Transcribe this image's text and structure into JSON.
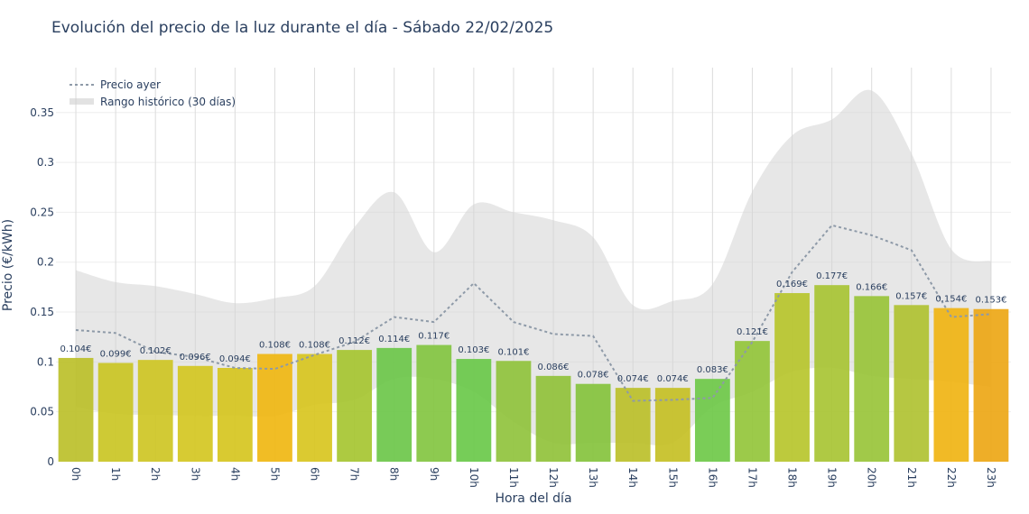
{
  "chart_data": {
    "type": "bar",
    "title": "Evolución del precio de la luz durante el día - Sábado 22/02/2025",
    "xlabel": "Hora del día",
    "ylabel": "Precio (€/kWh)",
    "ylim": [
      0,
      0.395
    ],
    "yticks": [
      "0",
      "0.05",
      "0.1",
      "0.15",
      "0.2",
      "0.25",
      "0.3",
      "0.35"
    ],
    "categories": [
      "0h",
      "1h",
      "2h",
      "3h",
      "4h",
      "5h",
      "6h",
      "7h",
      "8h",
      "9h",
      "10h",
      "11h",
      "12h",
      "13h",
      "14h",
      "15h",
      "16h",
      "17h",
      "18h",
      "19h",
      "20h",
      "21h",
      "22h",
      "23h"
    ],
    "values": [
      0.104,
      0.099,
      0.102,
      0.096,
      0.094,
      0.108,
      0.108,
      0.112,
      0.114,
      0.117,
      0.103,
      0.101,
      0.086,
      0.078,
      0.074,
      0.074,
      0.083,
      0.121,
      0.169,
      0.177,
      0.166,
      0.157,
      0.154,
      0.153
    ],
    "labels": [
      "0.104€",
      "0.099€",
      "0.102€",
      "0.096€",
      "0.094€",
      "0.108€",
      "0.108€",
      "0.112€",
      "0.114€",
      "0.117€",
      "0.103€",
      "0.101€",
      "0.086€",
      "0.078€",
      "0.074€",
      "0.074€",
      "0.083€",
      "0.121€",
      "0.169€",
      "0.177€",
      "0.166€",
      "0.157€",
      "0.154€",
      "0.153€"
    ],
    "bar_colors": [
      "#bcc02a",
      "#cac624",
      "#cec624",
      "#d4c722",
      "#d6c620",
      "#f0b712",
      "#d8c51f",
      "#a6c531",
      "#6cc74a",
      "#83c641",
      "#6ac94a",
      "#90c33d",
      "#91c23b",
      "#86c33d",
      "#bcc02a",
      "#c6c025",
      "#6fc949",
      "#94c63b",
      "#b7c52d",
      "#a8c434",
      "#99c43a",
      "#b0c232",
      "#f0b414",
      "#eda716"
    ],
    "series": [
      {
        "name": "Precio ayer",
        "values": [
          0.132,
          0.129,
          0.11,
          0.105,
          0.094,
          0.093,
          0.107,
          0.12,
          0.145,
          0.14,
          0.179,
          0.14,
          0.128,
          0.126,
          0.061,
          0.062,
          0.064,
          0.12,
          0.19,
          0.237,
          0.227,
          0.212,
          0.145,
          0.148
        ]
      },
      {
        "name": "Rango histórico (30 días)",
        "upper": [
          0.192,
          0.18,
          0.176,
          0.168,
          0.159,
          0.164,
          0.176,
          0.235,
          0.27,
          0.21,
          0.258,
          0.25,
          0.242,
          0.225,
          0.157,
          0.161,
          0.178,
          0.271,
          0.327,
          0.343,
          0.372,
          0.309,
          0.213,
          0.201
        ],
        "lower": [
          0.055,
          0.048,
          0.047,
          0.046,
          0.046,
          0.046,
          0.057,
          0.062,
          0.083,
          0.083,
          0.07,
          0.04,
          0.019,
          0.019,
          0.019,
          0.019,
          0.055,
          0.07,
          0.09,
          0.094,
          0.086,
          0.083,
          0.08,
          0.075
        ]
      }
    ],
    "legend": "top-left",
    "grid": true
  }
}
